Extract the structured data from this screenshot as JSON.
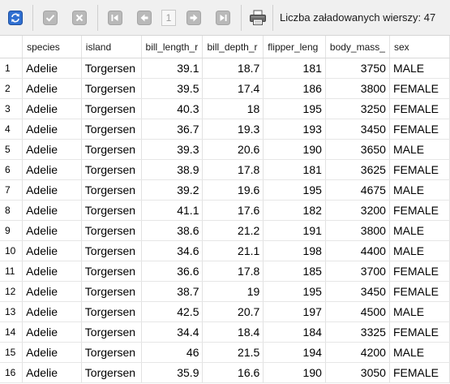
{
  "toolbar": {
    "refresh_icon": "refresh-icon",
    "accept_icon": "checkmark-icon",
    "cancel_icon": "close-icon",
    "first_icon": "first-page-icon",
    "prev_icon": "previous-page-icon",
    "page_number": "1",
    "next_icon": "next-page-icon",
    "last_icon": "last-page-icon",
    "print_icon": "printer-icon",
    "rows_label": "Liczba załadowanych wierszy: 47",
    "accent_color": "#2f6fd1"
  },
  "grid": {
    "columns": [
      "",
      "species",
      "island",
      "bill_length_r",
      "bill_depth_r",
      "flipper_leng",
      "body_mass_",
      "sex"
    ],
    "rows": [
      [
        "1",
        "Adelie",
        "Torgersen",
        "39.1",
        "18.7",
        "181",
        "3750",
        "MALE"
      ],
      [
        "2",
        "Adelie",
        "Torgersen",
        "39.5",
        "17.4",
        "186",
        "3800",
        "FEMALE"
      ],
      [
        "3",
        "Adelie",
        "Torgersen",
        "40.3",
        "18",
        "195",
        "3250",
        "FEMALE"
      ],
      [
        "4",
        "Adelie",
        "Torgersen",
        "36.7",
        "19.3",
        "193",
        "3450",
        "FEMALE"
      ],
      [
        "5",
        "Adelie",
        "Torgersen",
        "39.3",
        "20.6",
        "190",
        "3650",
        "MALE"
      ],
      [
        "6",
        "Adelie",
        "Torgersen",
        "38.9",
        "17.8",
        "181",
        "3625",
        "FEMALE"
      ],
      [
        "7",
        "Adelie",
        "Torgersen",
        "39.2",
        "19.6",
        "195",
        "4675",
        "MALE"
      ],
      [
        "8",
        "Adelie",
        "Torgersen",
        "41.1",
        "17.6",
        "182",
        "3200",
        "FEMALE"
      ],
      [
        "9",
        "Adelie",
        "Torgersen",
        "38.6",
        "21.2",
        "191",
        "3800",
        "MALE"
      ],
      [
        "10",
        "Adelie",
        "Torgersen",
        "34.6",
        "21.1",
        "198",
        "4400",
        "MALE"
      ],
      [
        "11",
        "Adelie",
        "Torgersen",
        "36.6",
        "17.8",
        "185",
        "3700",
        "FEMALE"
      ],
      [
        "12",
        "Adelie",
        "Torgersen",
        "38.7",
        "19",
        "195",
        "3450",
        "FEMALE"
      ],
      [
        "13",
        "Adelie",
        "Torgersen",
        "42.5",
        "20.7",
        "197",
        "4500",
        "MALE"
      ],
      [
        "14",
        "Adelie",
        "Torgersen",
        "34.4",
        "18.4",
        "184",
        "3325",
        "FEMALE"
      ],
      [
        "15",
        "Adelie",
        "Torgersen",
        "46",
        "21.5",
        "194",
        "4200",
        "MALE"
      ],
      [
        "16",
        "Adelie",
        "Torgersen",
        "35.9",
        "16.6",
        "190",
        "3050",
        "FEMALE"
      ]
    ]
  }
}
